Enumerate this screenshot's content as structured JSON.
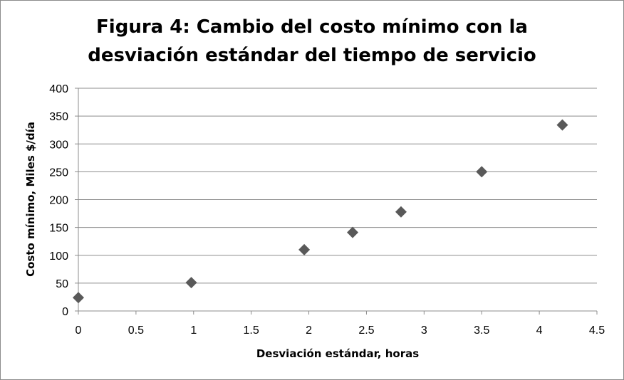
{
  "chart_data": {
    "type": "scatter",
    "title_line1": "Figura 4: Cambio del costo mínimo con la",
    "title_line2": "desviación estándar del tiempo de servicio",
    "xlabel": "Desviación estándar, horas",
    "ylabel": "Costo mínimo, Miles $/día",
    "xlim": [
      0,
      4.5
    ],
    "ylim": [
      0,
      400
    ],
    "xticks": [
      0,
      0.5,
      1,
      1.5,
      2,
      2.5,
      3,
      3.5,
      4,
      4.5
    ],
    "yticks": [
      0,
      50,
      100,
      150,
      200,
      250,
      300,
      350,
      400
    ],
    "grid": "horizontal",
    "legend": "none",
    "marker": "diamond",
    "marker_color": "#595959",
    "points": [
      {
        "x": 0,
        "y": 24
      },
      {
        "x": 0.98,
        "y": 51
      },
      {
        "x": 1.96,
        "y": 110
      },
      {
        "x": 2.38,
        "y": 141
      },
      {
        "x": 2.8,
        "y": 178
      },
      {
        "x": 3.5,
        "y": 250
      },
      {
        "x": 4.2,
        "y": 334
      }
    ]
  }
}
